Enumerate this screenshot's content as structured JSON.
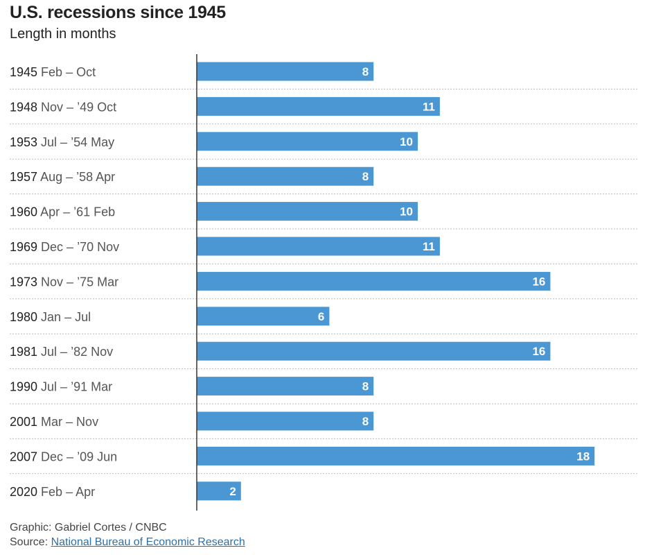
{
  "title": "U.S. recessions since 1945",
  "subtitle": "Length in months",
  "footer": {
    "credit": "Graphic: Gabriel Cortes / CNBC",
    "source_prefix": "Source: ",
    "source_link": "National Bureau of Economic Research"
  },
  "colors": {
    "bar": "#4a97d3",
    "bar_label": "#ffffff",
    "gridline": "#bbbbbb",
    "axis": "#333333",
    "year_text": "#222222",
    "range_text": "#555555"
  },
  "chart_data": {
    "type": "bar",
    "orientation": "horizontal",
    "title": "U.S. recessions since 1945",
    "subtitle": "Length in months",
    "xlim": [
      0,
      20
    ],
    "grid": false,
    "categories": [
      {
        "year": "1945",
        "range": "Feb – Oct"
      },
      {
        "year": "1948",
        "range": "Nov – ’49 Oct"
      },
      {
        "year": "1953",
        "range": "Jul – ’54 May"
      },
      {
        "year": "1957",
        "range": "Aug – ’58 Apr"
      },
      {
        "year": "1960",
        "range": "Apr – ’61 Feb"
      },
      {
        "year": "1969",
        "range": "Dec – ’70 Nov"
      },
      {
        "year": "1973",
        "range": "Nov – ’75 Mar"
      },
      {
        "year": "1980",
        "range": "Jan – Jul"
      },
      {
        "year": "1981",
        "range": "Jul – ’82 Nov"
      },
      {
        "year": "1990",
        "range": "Jul – ’91 Mar"
      },
      {
        "year": "2001",
        "range": "Mar – Nov"
      },
      {
        "year": "2007",
        "range": "Dec – ’09 Jun"
      },
      {
        "year": "2020",
        "range": "Feb – Apr"
      }
    ],
    "values": [
      8,
      11,
      10,
      8,
      10,
      11,
      16,
      6,
      16,
      8,
      8,
      18,
      2
    ]
  }
}
